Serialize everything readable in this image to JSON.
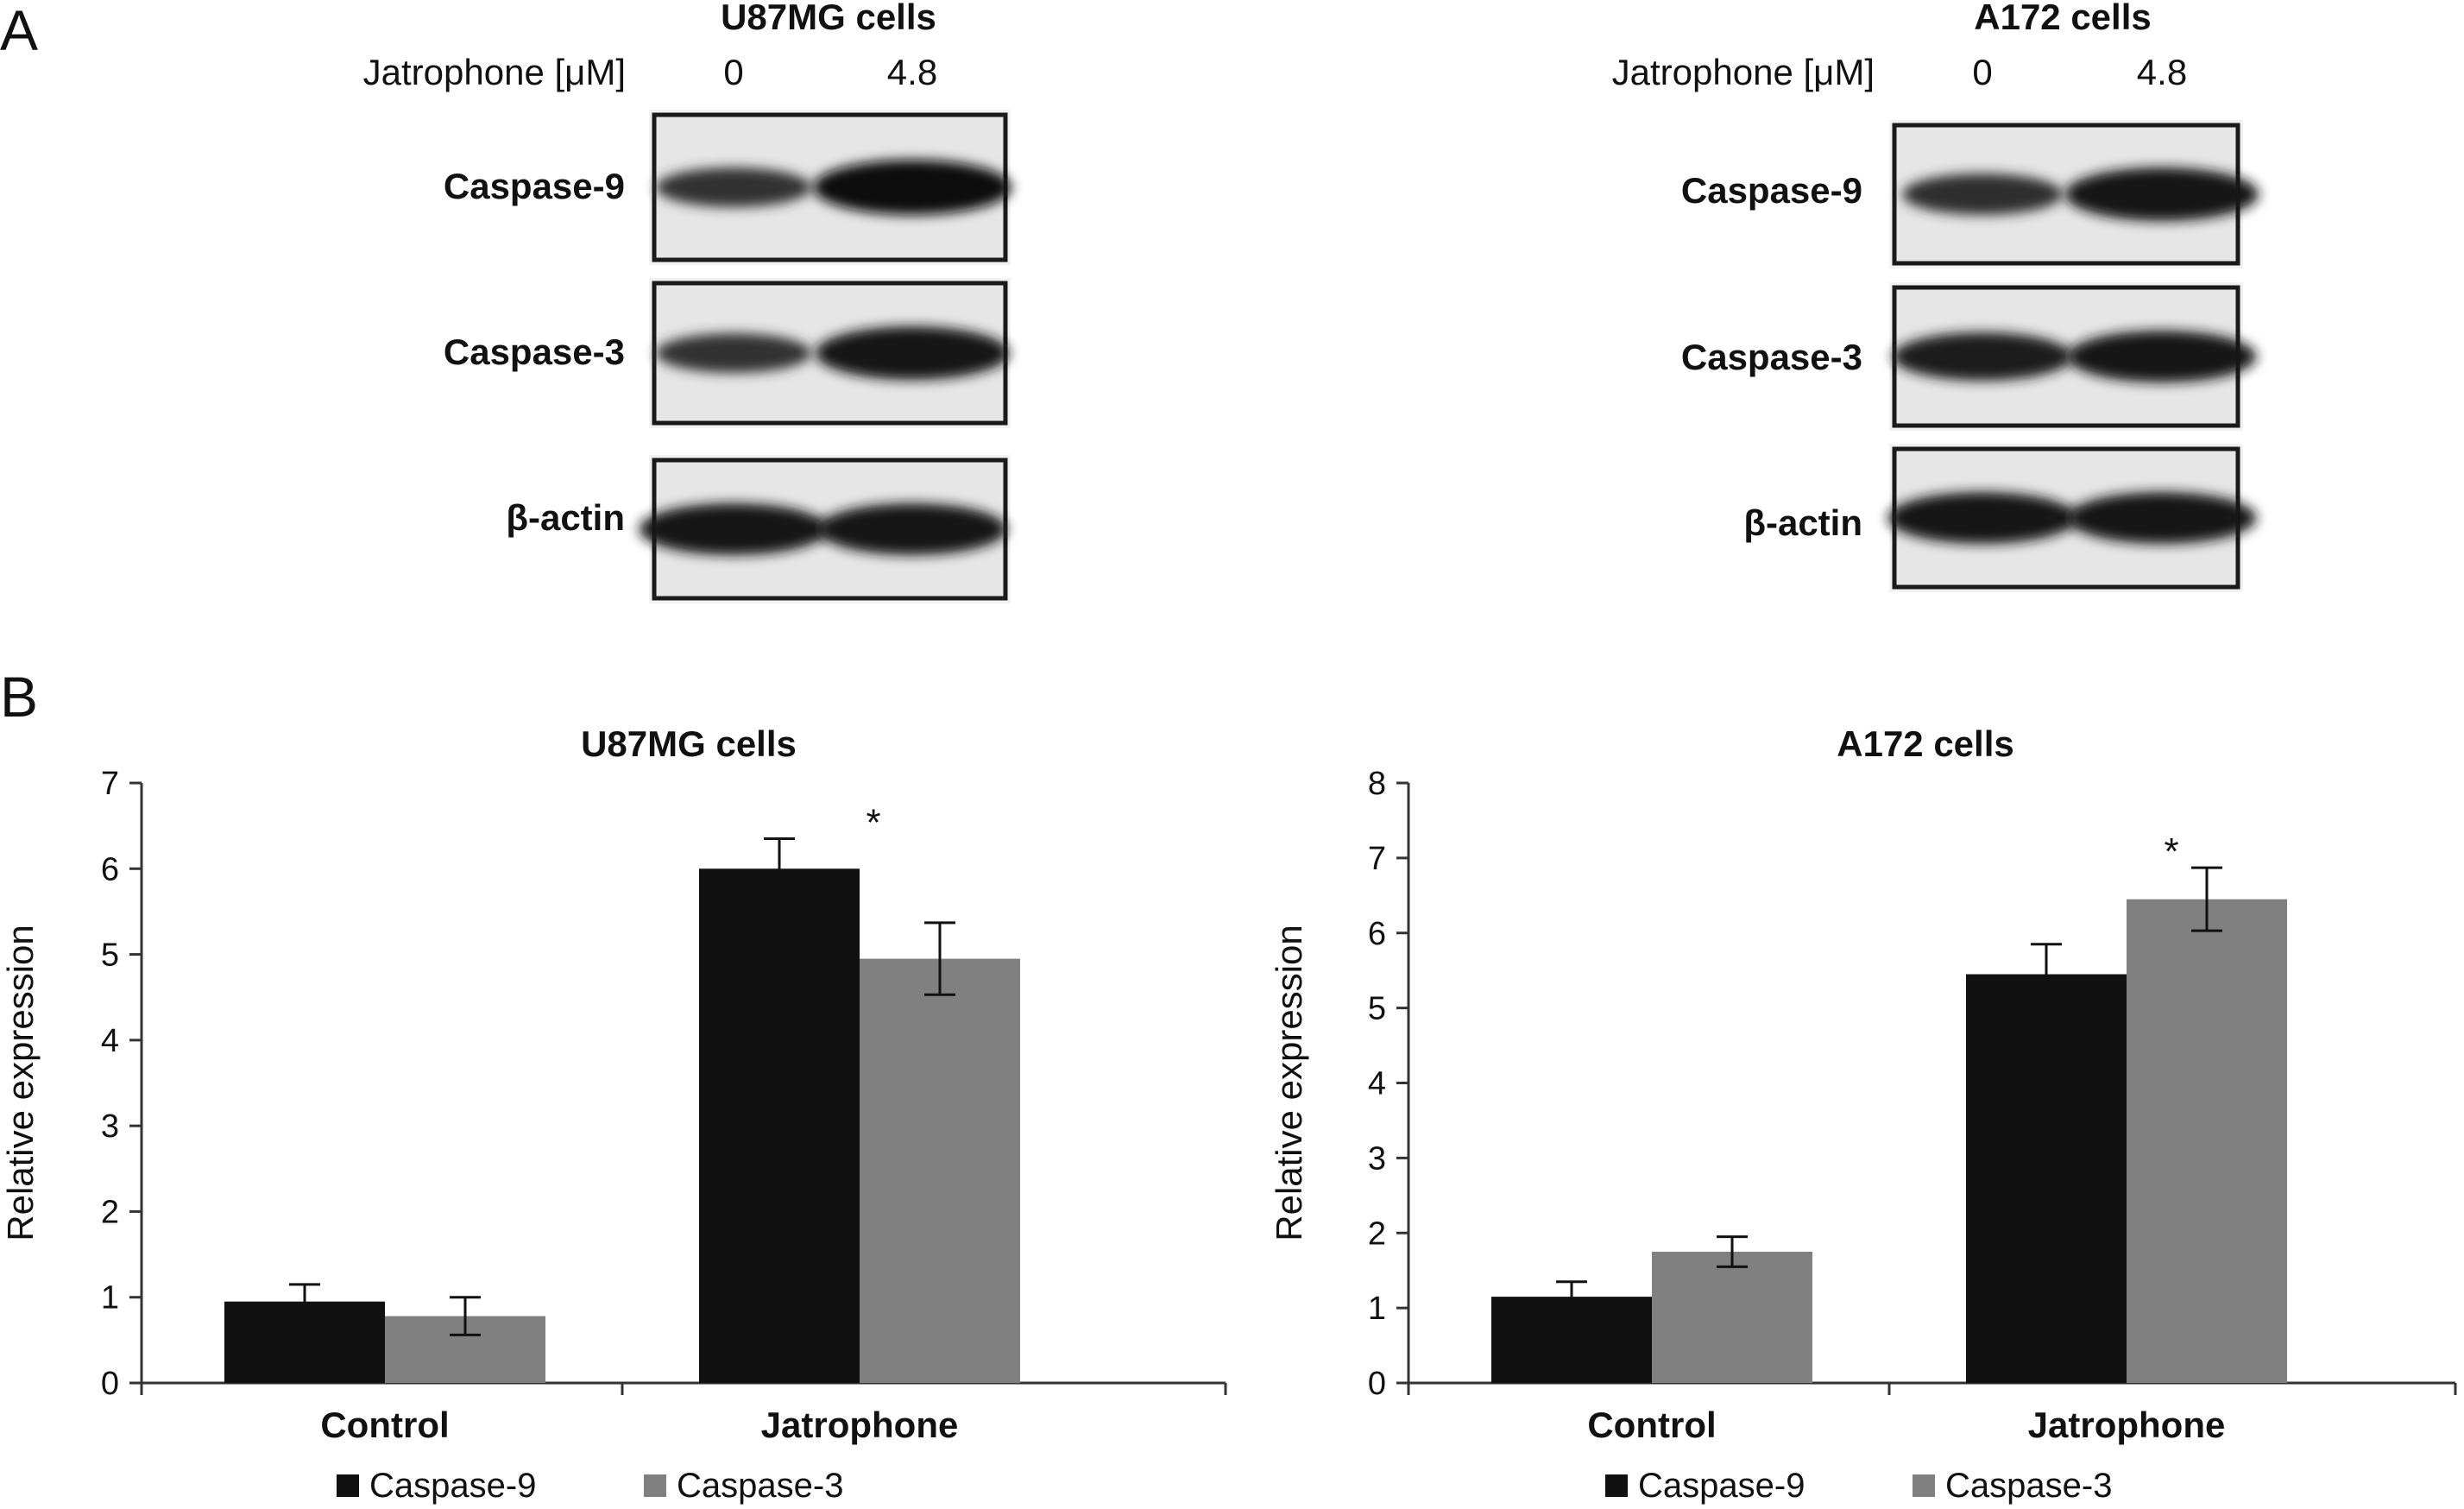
{
  "panel_a": {
    "letter": "A",
    "blots": [
      {
        "cell_line": "U87MG cells",
        "treatment_label": "Jatrophone [μM]",
        "concentrations": [
          "0",
          "4.8"
        ],
        "bands": [
          {
            "protein": "Caspase-9",
            "intensity": [
              0.55,
              1.0
            ]
          },
          {
            "protein": "Caspase-3",
            "intensity": [
              0.55,
              0.95
            ]
          },
          {
            "protein": "β-actin",
            "intensity": [
              0.9,
              0.9
            ]
          }
        ]
      },
      {
        "cell_line": "A172 cells",
        "treatment_label": "Jatrophone [μM]",
        "concentrations": [
          "0",
          "4.8"
        ],
        "bands": [
          {
            "protein": "Caspase-9",
            "intensity": [
              0.6,
              0.95
            ]
          },
          {
            "protein": "Caspase-3",
            "intensity": [
              0.8,
              0.9
            ]
          },
          {
            "protein": "β-actin",
            "intensity": [
              0.9,
              0.9
            ]
          }
        ]
      }
    ]
  },
  "panel_b": {
    "letter": "B"
  },
  "colors": {
    "caspase9": "#111111",
    "caspase3": "#808080",
    "axis": "#333333"
  },
  "chart_data": [
    {
      "type": "bar",
      "title": "U87MG cells",
      "xlabel": "",
      "ylabel": "Relative expression",
      "ylim": [
        0,
        7
      ],
      "yticks": [
        0,
        1,
        2,
        3,
        4,
        5,
        6,
        7
      ],
      "categories": [
        "Control",
        "Jatrophone"
      ],
      "series": [
        {
          "name": "Caspase-9",
          "values": [
            0.95,
            6.0
          ],
          "errors": [
            0.2,
            0.35
          ]
        },
        {
          "name": "Caspase-3",
          "values": [
            0.78,
            4.95
          ],
          "errors": [
            0.22,
            0.42
          ]
        }
      ],
      "annotations": [
        {
          "text": "*",
          "category": "Jatrophone"
        }
      ],
      "legend": "bottom"
    },
    {
      "type": "bar",
      "title": "A172 cells",
      "xlabel": "",
      "ylabel": "Relative expression",
      "ylim": [
        0,
        8
      ],
      "yticks": [
        0,
        1,
        2,
        3,
        4,
        5,
        6,
        7,
        8
      ],
      "categories": [
        "Control",
        "Jatrophone"
      ],
      "series": [
        {
          "name": "Caspase-9",
          "values": [
            1.15,
            5.45
          ],
          "errors": [
            0.2,
            0.4
          ]
        },
        {
          "name": "Caspase-3",
          "values": [
            1.75,
            6.45
          ],
          "errors": [
            0.2,
            0.42
          ]
        }
      ],
      "annotations": [
        {
          "text": "*",
          "category": "Jatrophone"
        }
      ],
      "legend": "bottom"
    }
  ]
}
